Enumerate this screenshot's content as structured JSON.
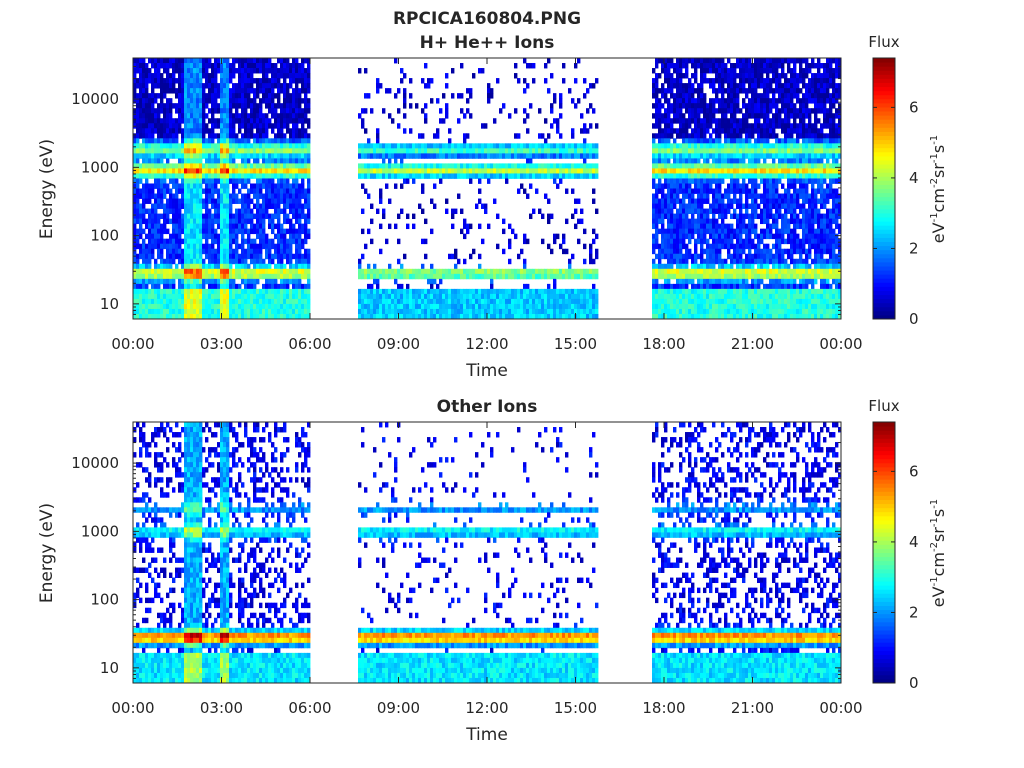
{
  "figure_title": "RPCICA160804.PNG",
  "colorbar": {
    "title": "Flux",
    "unit_parts": [
      "eV",
      "-1",
      "cm",
      "-2",
      "sr",
      "-1",
      "s",
      "-1"
    ],
    "ticks": [
      "0",
      "2",
      "4",
      "6"
    ],
    "range": [
      0,
      7.4
    ],
    "colormap": "jet"
  },
  "chart_data": [
    {
      "type": "heatmap",
      "title": "H+ He++ Ions",
      "xlabel": "Time",
      "ylabel": "Energy (eV)",
      "x_ticks": [
        "00:00",
        "03:00",
        "06:00",
        "09:00",
        "12:00",
        "15:00",
        "18:00",
        "21:00",
        "00:00"
      ],
      "xlim_hours": [
        0,
        24
      ],
      "y_scale": "log",
      "y_ticks": [
        "10",
        "100",
        "1000",
        "10000"
      ],
      "ylim": [
        6,
        40000
      ],
      "data_gaps_hours": [
        [
          5.95,
          7.6
        ],
        [
          15.8,
          17.55
        ]
      ],
      "bands": [
        {
          "energy_eV": 900,
          "flux": 3.6
        },
        {
          "energy_eV": 1800,
          "flux": 2.6
        },
        {
          "energy_eV": 28,
          "flux": 3.4
        }
      ]
    },
    {
      "type": "heatmap",
      "title": "Other Ions",
      "xlabel": "Time",
      "ylabel": "Energy (eV)",
      "x_ticks": [
        "00:00",
        "03:00",
        "06:00",
        "09:00",
        "12:00",
        "15:00",
        "18:00",
        "21:00",
        "00:00"
      ],
      "xlim_hours": [
        0,
        24
      ],
      "y_scale": "log",
      "y_ticks": [
        "10",
        "100",
        "1000",
        "10000"
      ],
      "ylim": [
        6,
        40000
      ],
      "data_gaps_hours": [
        [
          5.95,
          7.6
        ],
        [
          15.8,
          17.55
        ]
      ],
      "bands": [
        {
          "energy_eV": 28,
          "flux": 5.0
        },
        {
          "energy_eV": 1000,
          "flux": 2.0
        },
        {
          "energy_eV": 2200,
          "flux": 1.3
        }
      ]
    }
  ]
}
